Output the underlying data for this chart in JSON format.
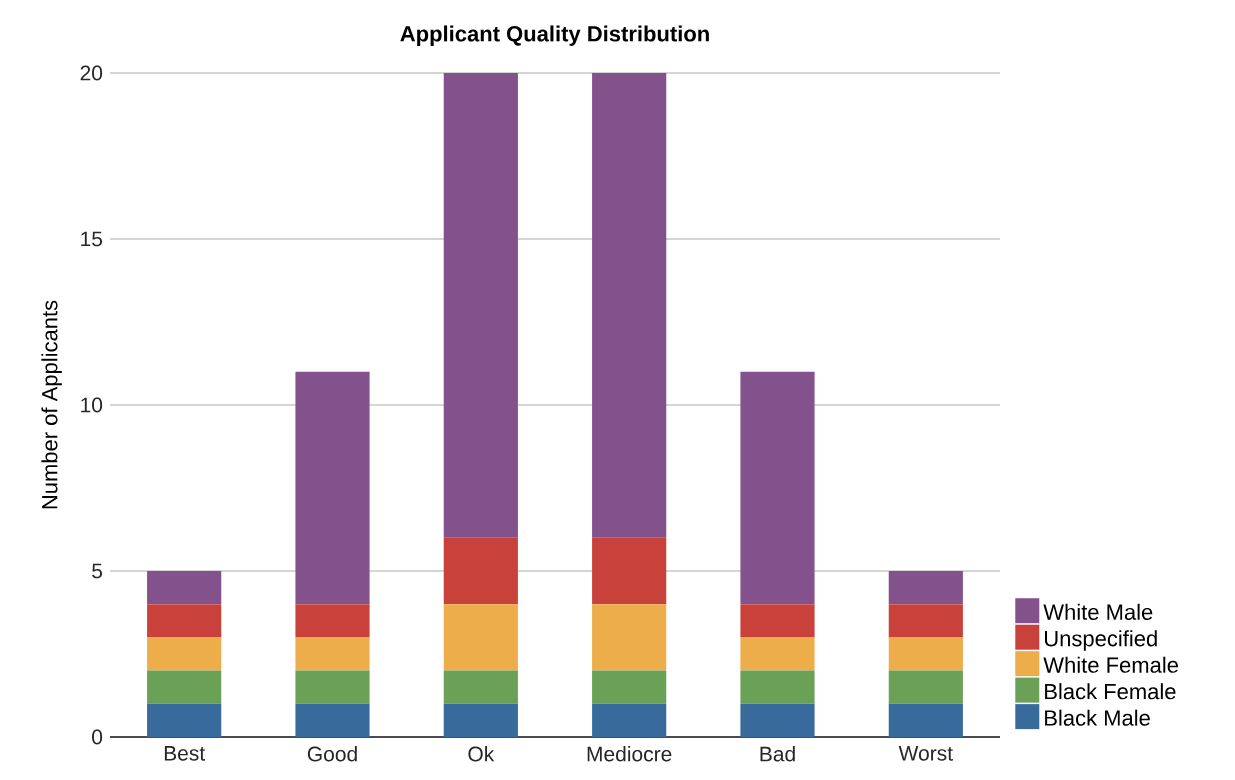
{
  "chart_data": {
    "type": "bar",
    "title": "Applicant Quality Distribution",
    "ylabel": "Number of Applicants",
    "categories": [
      "Best",
      "Good",
      "Ok",
      "Mediocre",
      "Bad",
      "Worst"
    ],
    "series": [
      {
        "name": "Black Male",
        "color": "#386b9c",
        "values": [
          1,
          1,
          1,
          1,
          1,
          1
        ]
      },
      {
        "name": "Black Female",
        "color": "#6aa156",
        "values": [
          1,
          1,
          1,
          1,
          1,
          1
        ]
      },
      {
        "name": "White Female",
        "color": "#ecad4a",
        "values": [
          1,
          1,
          2,
          2,
          1,
          1
        ]
      },
      {
        "name": "Unspecified",
        "color": "#c9413b",
        "values": [
          1,
          1,
          2,
          2,
          1,
          1
        ]
      },
      {
        "name": "White Male",
        "color": "#83518c",
        "values": [
          1,
          7,
          14,
          14,
          7,
          1
        ]
      }
    ],
    "stacked": true,
    "ylim": [
      0,
      20
    ],
    "yticks": [
      0,
      5,
      10,
      15,
      20
    ],
    "grid": "y",
    "legend": "bottom right"
  }
}
